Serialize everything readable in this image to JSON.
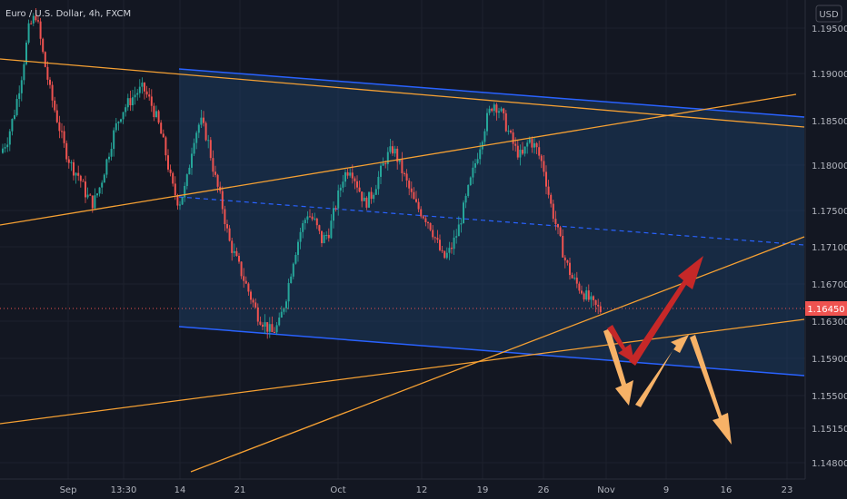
{
  "chart_data": {
    "type": "candlestick",
    "title": "Euro / U.S. Dollar, 4h, FXCM",
    "currency_label": "USD",
    "x_ticks": [
      "Sep",
      "13:30",
      "14",
      "21",
      "Oct",
      "12",
      "19",
      "26",
      "Nov",
      "9",
      "16",
      "23"
    ],
    "y_ticks": [
      "1.19500",
      "1.19000",
      "1.18500",
      "1.18000",
      "1.17500",
      "1.17100",
      "1.16700",
      "1.16300",
      "1.15900",
      "1.15500",
      "1.15150",
      "1.14800"
    ],
    "last_price": "1.16450",
    "grid": true,
    "colors": {
      "background": "#131722",
      "grid": "#1e222d",
      "up": "#26a69a",
      "down": "#ef5350",
      "channel_line": "#2962ff",
      "channel_fill": "#1c3a5e",
      "trendline": "#f5a033",
      "arrow_red": "#c62828",
      "arrow_orange": "#f7b267",
      "price_label": "#ef5350"
    },
    "close_path": [
      1.1815,
      1.183,
      1.186,
      1.19,
      1.195,
      1.1965,
      1.192,
      1.188,
      1.185,
      1.182,
      1.18,
      1.179,
      1.177,
      1.176,
      1.178,
      1.181,
      1.184,
      1.186,
      1.187,
      1.188,
      1.1885,
      1.187,
      1.185,
      1.182,
      1.178,
      1.176,
      1.178,
      1.183,
      1.185,
      1.183,
      1.179,
      1.176,
      1.172,
      1.17,
      1.168,
      1.166,
      1.164,
      1.163,
      1.162,
      1.163,
      1.166,
      1.17,
      1.173,
      1.175,
      1.174,
      1.172,
      1.173,
      1.176,
      1.179,
      1.18,
      1.178,
      1.176,
      1.177,
      1.179,
      1.181,
      1.182,
      1.18,
      1.178,
      1.176,
      1.175,
      1.174,
      1.172,
      1.17,
      1.171,
      1.173,
      1.176,
      1.179,
      1.182,
      1.185,
      1.187,
      1.186,
      1.184,
      1.182,
      1.181,
      1.183,
      1.182,
      1.18,
      1.176,
      1.173,
      1.17,
      1.168,
      1.167,
      1.166,
      1.165,
      1.1645
    ]
  }
}
